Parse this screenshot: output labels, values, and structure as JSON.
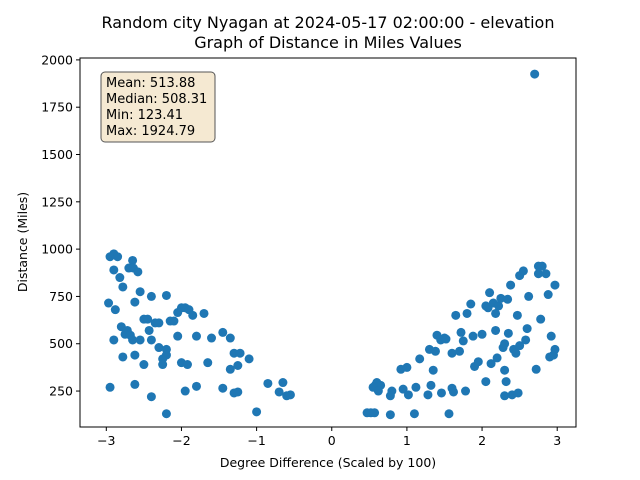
{
  "chart_data": {
    "type": "scatter",
    "title_lines": [
      "Random city Nyagan at 2024-05-17 02:00:00  - elevation",
      "Graph of Distance in Miles Values"
    ],
    "xlabel": "Degree Difference (Scaled by 100)",
    "ylabel": "Distance (Miles)",
    "xlim": [
      -3.35,
      3.25
    ],
    "ylim": [
      60,
      2010
    ],
    "x_ticks": [
      -3,
      -2,
      -1,
      0,
      1,
      2,
      3
    ],
    "y_ticks": [
      250,
      500,
      750,
      1000,
      1250,
      1500,
      1750,
      2000
    ],
    "grid": false,
    "stats_box": {
      "lines": [
        "Mean: 513.88",
        "Median: 508.31",
        "Min: 123.41",
        "Max: 1924.79"
      ],
      "placement": "top-left",
      "facecolor": "#f5e9d2",
      "edgecolor": "#555555"
    },
    "marker_color": "#1f77b4",
    "points": [
      [
        -2.95,
        960
      ],
      [
        -2.9,
        975
      ],
      [
        -2.85,
        960
      ],
      [
        -2.9,
        890
      ],
      [
        -2.82,
        850
      ],
      [
        -2.78,
        800
      ],
      [
        -2.7,
        900
      ],
      [
        -2.65,
        940
      ],
      [
        -2.64,
        900
      ],
      [
        -2.58,
        880
      ],
      [
        -2.62,
        720
      ],
      [
        -2.55,
        775
      ],
      [
        -2.5,
        630
      ],
      [
        -2.45,
        630
      ],
      [
        -2.4,
        750
      ],
      [
        -2.3,
        610
      ],
      [
        -2.35,
        610
      ],
      [
        -2.2,
        755
      ],
      [
        -2.15,
        620
      ],
      [
        -2.05,
        665
      ],
      [
        -2.0,
        690
      ],
      [
        -1.95,
        690
      ],
      [
        -1.9,
        680
      ],
      [
        -1.85,
        650
      ],
      [
        -1.7,
        660
      ],
      [
        -2.97,
        715
      ],
      [
        -2.88,
        680
      ],
      [
        -2.8,
        590
      ],
      [
        -2.72,
        570
      ],
      [
        -2.75,
        550
      ],
      [
        -2.68,
        545
      ],
      [
        -2.65,
        520
      ],
      [
        -2.55,
        520
      ],
      [
        -2.43,
        570
      ],
      [
        -2.4,
        520
      ],
      [
        -2.3,
        480
      ],
      [
        -2.2,
        470
      ],
      [
        -2.2,
        440
      ],
      [
        -2.1,
        620
      ],
      [
        -2.05,
        540
      ],
      [
        -2.0,
        400
      ],
      [
        -1.92,
        390
      ],
      [
        -1.8,
        540
      ],
      [
        -1.6,
        530
      ],
      [
        -1.45,
        560
      ],
      [
        -1.35,
        530
      ],
      [
        -1.3,
        450
      ],
      [
        -1.22,
        450
      ],
      [
        -1.1,
        420
      ],
      [
        -1.25,
        385
      ],
      [
        -1.35,
        365
      ],
      [
        -1.65,
        400
      ],
      [
        -2.9,
        520
      ],
      [
        -2.78,
        430
      ],
      [
        -2.62,
        440
      ],
      [
        -2.5,
        390
      ],
      [
        -2.25,
        420
      ],
      [
        -2.25,
        390
      ],
      [
        -2.95,
        270
      ],
      [
        -2.62,
        285
      ],
      [
        -2.4,
        220
      ],
      [
        -2.2,
        130
      ],
      [
        -1.95,
        250
      ],
      [
        -1.8,
        275
      ],
      [
        -1.45,
        265
      ],
      [
        -1.3,
        240
      ],
      [
        -1.25,
        245
      ],
      [
        -1.0,
        140
      ],
      [
        -0.85,
        290
      ],
      [
        -0.7,
        245
      ],
      [
        -0.65,
        295
      ],
      [
        -0.6,
        225
      ],
      [
        -0.55,
        230
      ],
      [
        0.47,
        135
      ],
      [
        0.52,
        135
      ],
      [
        0.57,
        135
      ],
      [
        0.58,
        280
      ],
      [
        0.6,
        295
      ],
      [
        0.65,
        280
      ],
      [
        0.55,
        270
      ],
      [
        0.62,
        250
      ],
      [
        0.78,
        125
      ],
      [
        0.8,
        250
      ],
      [
        0.78,
        225
      ],
      [
        0.92,
        365
      ],
      [
        0.95,
        260
      ],
      [
        1.0,
        375
      ],
      [
        1.02,
        230
      ],
      [
        1.1,
        130
      ],
      [
        1.12,
        270
      ],
      [
        1.17,
        420
      ],
      [
        1.28,
        230
      ],
      [
        1.3,
        470
      ],
      [
        1.32,
        280
      ],
      [
        1.35,
        360
      ],
      [
        1.38,
        460
      ],
      [
        1.4,
        545
      ],
      [
        1.45,
        520
      ],
      [
        1.46,
        240
      ],
      [
        1.5,
        530
      ],
      [
        1.52,
        525
      ],
      [
        1.56,
        130
      ],
      [
        1.6,
        265
      ],
      [
        1.6,
        450
      ],
      [
        1.62,
        245
      ],
      [
        1.65,
        650
      ],
      [
        1.7,
        460
      ],
      [
        1.72,
        560
      ],
      [
        1.75,
        515
      ],
      [
        1.78,
        250
      ],
      [
        1.8,
        660
      ],
      [
        1.85,
        710
      ],
      [
        1.9,
        380
      ],
      [
        1.88,
        540
      ],
      [
        1.95,
        405
      ],
      [
        2.0,
        550
      ],
      [
        2.05,
        700
      ],
      [
        2.05,
        300
      ],
      [
        2.08,
        690
      ],
      [
        2.1,
        770
      ],
      [
        2.12,
        395
      ],
      [
        2.15,
        715
      ],
      [
        2.18,
        660
      ],
      [
        2.18,
        570
      ],
      [
        2.2,
        425
      ],
      [
        2.22,
        700
      ],
      [
        2.25,
        740
      ],
      [
        2.28,
        480
      ],
      [
        2.3,
        500
      ],
      [
        2.3,
        360
      ],
      [
        2.3,
        225
      ],
      [
        2.32,
        300
      ],
      [
        2.34,
        735
      ],
      [
        2.35,
        555
      ],
      [
        2.38,
        810
      ],
      [
        2.4,
        230
      ],
      [
        2.42,
        470
      ],
      [
        2.45,
        450
      ],
      [
        2.47,
        650
      ],
      [
        2.5,
        490
      ],
      [
        2.48,
        240
      ],
      [
        2.5,
        860
      ],
      [
        2.55,
        885
      ],
      [
        2.6,
        580
      ],
      [
        2.58,
        520
      ],
      [
        2.62,
        750
      ],
      [
        2.7,
        1925
      ],
      [
        2.72,
        365
      ],
      [
        2.75,
        870
      ],
      [
        2.75,
        910
      ],
      [
        2.8,
        910
      ],
      [
        2.78,
        630
      ],
      [
        2.85,
        870
      ],
      [
        2.88,
        760
      ],
      [
        2.9,
        430
      ],
      [
        2.92,
        540
      ],
      [
        2.95,
        440
      ],
      [
        2.97,
        470
      ],
      [
        2.97,
        810
      ]
    ]
  }
}
